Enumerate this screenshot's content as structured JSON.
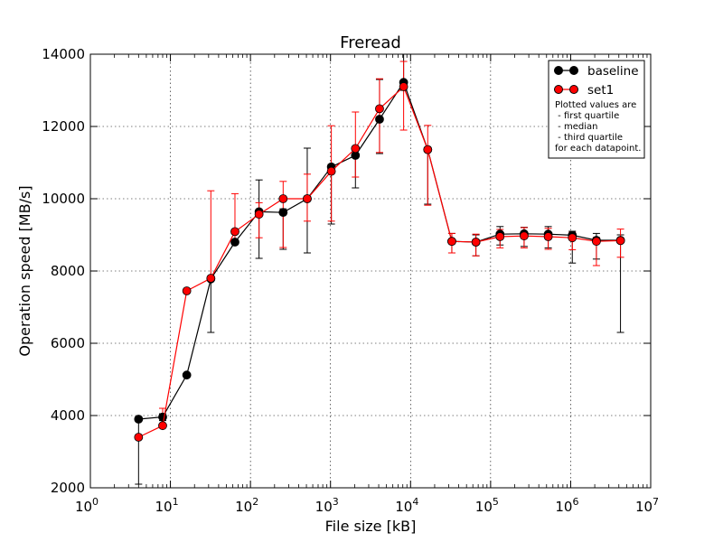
{
  "chart_data": {
    "type": "line",
    "title": "Freread",
    "xlabel": "File size [kB]",
    "ylabel": "Operation speed [MB/s]",
    "xscale": "log",
    "xlim": [
      1,
      10000000
    ],
    "ylim": [
      2000,
      14000
    ],
    "x_tick_labels": [
      {
        "base": "10",
        "exp": "0"
      },
      {
        "base": "10",
        "exp": "1"
      },
      {
        "base": "10",
        "exp": "2"
      },
      {
        "base": "10",
        "exp": "3"
      },
      {
        "base": "10",
        "exp": "4"
      },
      {
        "base": "10",
        "exp": "5"
      },
      {
        "base": "10",
        "exp": "6"
      },
      {
        "base": "10",
        "exp": "7"
      }
    ],
    "y_tick_labels": [
      "2000",
      "4000",
      "6000",
      "8000",
      "10000",
      "12000",
      "14000"
    ],
    "grid": true,
    "legend_position": "top-right",
    "legend_note": [
      "Plotted values are",
      " - first quartile",
      " - median",
      " - third quartile",
      "for each datapoint."
    ],
    "x": [
      4,
      8,
      16,
      32,
      64,
      128,
      256,
      512,
      1024,
      2048,
      4096,
      8192,
      16384,
      32768,
      65536,
      131072,
      262144,
      524288,
      1048576,
      2097152,
      4194304
    ],
    "series": [
      {
        "name": "baseline",
        "color": "#000000",
        "median": [
          3900,
          3960,
          5120,
          7780,
          8800,
          9640,
          9620,
          10000,
          10880,
          11200,
          12200,
          13220,
          11360,
          8820,
          8800,
          9020,
          9030,
          9020,
          8990,
          8850,
          8850
        ],
        "q1": [
          2100,
          3860,
          5080,
          6300,
          8780,
          8350,
          8600,
          8500,
          9300,
          10300,
          11250,
          13000,
          9850,
          8500,
          8420,
          8720,
          8680,
          8640,
          8220,
          8330,
          6300
        ],
        "q3": [
          3960,
          4050,
          5160,
          7800,
          8820,
          10520,
          9720,
          11400,
          10950,
          11250,
          13300,
          14000,
          11400,
          9040,
          9000,
          9230,
          9210,
          9230,
          9100,
          9040,
          9000
        ]
      },
      {
        "name": "set1",
        "color": "#ff0000",
        "median": [
          3400,
          3720,
          7450,
          7800,
          9090,
          9570,
          10000,
          10000,
          10760,
          11390,
          12490,
          13100,
          11360,
          8820,
          8800,
          8950,
          8970,
          8950,
          8920,
          8820,
          8840
        ],
        "q1": [
          3390,
          3700,
          7440,
          7780,
          8850,
          8920,
          8650,
          9380,
          9380,
          10600,
          11280,
          11900,
          9820,
          8500,
          8420,
          8640,
          8640,
          8600,
          8590,
          8150,
          8380
        ],
        "q3": [
          3420,
          4200,
          7460,
          10220,
          10140,
          9890,
          10480,
          10680,
          12020,
          12400,
          13320,
          13800,
          12030,
          9040,
          9020,
          9150,
          9200,
          9180,
          9070,
          8930,
          9160
        ]
      }
    ]
  }
}
